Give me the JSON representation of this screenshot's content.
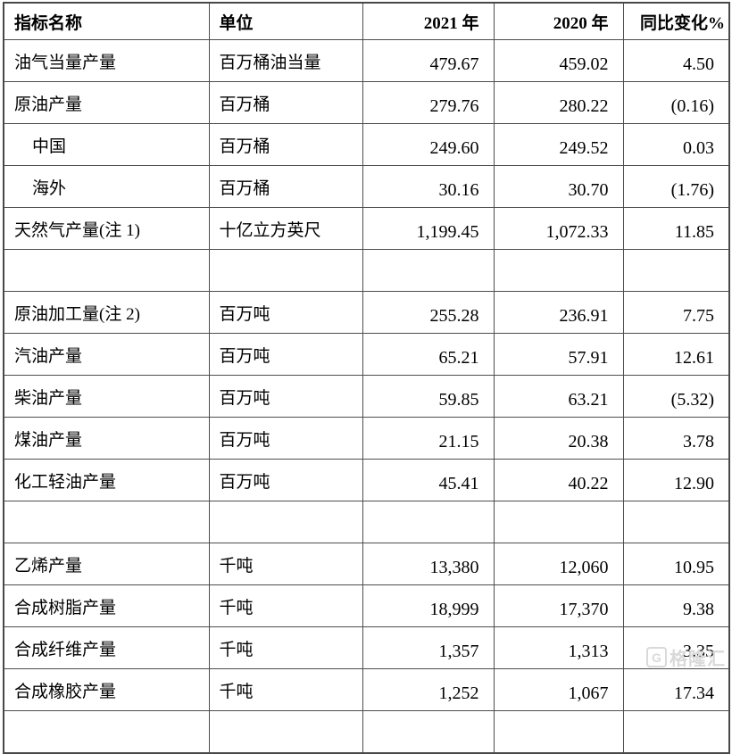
{
  "table": {
    "columns": [
      {
        "key": "name",
        "label": "指标名称",
        "align": "left"
      },
      {
        "key": "unit",
        "label": "单位",
        "align": "left"
      },
      {
        "key": "y2021",
        "label": "2021 年",
        "align": "right"
      },
      {
        "key": "y2020",
        "label": "2020 年",
        "align": "right"
      },
      {
        "key": "change",
        "label": "同比变化%",
        "align": "right"
      }
    ],
    "rows": [
      {
        "name": "油气当量产量",
        "unit": "百万桶油当量",
        "y2021": "479.67",
        "y2020": "459.02",
        "change": "4.50",
        "indent": false,
        "empty": false
      },
      {
        "name": "原油产量",
        "unit": "百万桶",
        "y2021": "279.76",
        "y2020": "280.22",
        "change": "(0.16)",
        "indent": false,
        "empty": false
      },
      {
        "name": "中国",
        "unit": "百万桶",
        "y2021": "249.60",
        "y2020": "249.52",
        "change": "0.03",
        "indent": true,
        "empty": false
      },
      {
        "name": "海外",
        "unit": "百万桶",
        "y2021": "30.16",
        "y2020": "30.70",
        "change": "(1.76)",
        "indent": true,
        "empty": false
      },
      {
        "name": "天然气产量(注 1)",
        "unit": "十亿立方英尺",
        "y2021": "1,199.45",
        "y2020": "1,072.33",
        "change": "11.85",
        "indent": false,
        "empty": false
      },
      {
        "name": "",
        "unit": "",
        "y2021": "",
        "y2020": "",
        "change": "",
        "indent": false,
        "empty": true
      },
      {
        "name": "原油加工量(注 2)",
        "unit": "百万吨",
        "y2021": "255.28",
        "y2020": "236.91",
        "change": "7.75",
        "indent": false,
        "empty": false
      },
      {
        "name": "汽油产量",
        "unit": "百万吨",
        "y2021": "65.21",
        "y2020": "57.91",
        "change": "12.61",
        "indent": false,
        "empty": false
      },
      {
        "name": "柴油产量",
        "unit": "百万吨",
        "y2021": "59.85",
        "y2020": "63.21",
        "change": "(5.32)",
        "indent": false,
        "empty": false
      },
      {
        "name": "煤油产量",
        "unit": "百万吨",
        "y2021": "21.15",
        "y2020": "20.38",
        "change": "3.78",
        "indent": false,
        "empty": false
      },
      {
        "name": "化工轻油产量",
        "unit": "百万吨",
        "y2021": "45.41",
        "y2020": "40.22",
        "change": "12.90",
        "indent": false,
        "empty": false
      },
      {
        "name": "",
        "unit": "",
        "y2021": "",
        "y2020": "",
        "change": "",
        "indent": false,
        "empty": true
      },
      {
        "name": "乙烯产量",
        "unit": "千吨",
        "y2021": "13,380",
        "y2020": "12,060",
        "change": "10.95",
        "indent": false,
        "empty": false
      },
      {
        "name": "合成树脂产量",
        "unit": "千吨",
        "y2021": "18,999",
        "y2020": "17,370",
        "change": "9.38",
        "indent": false,
        "empty": false
      },
      {
        "name": "合成纤维产量",
        "unit": "千吨",
        "y2021": "1,357",
        "y2020": "1,313",
        "change": "3.35",
        "indent": false,
        "empty": false
      },
      {
        "name": "合成橡胶产量",
        "unit": "千吨",
        "y2021": "1,252",
        "y2020": "1,067",
        "change": "17.34",
        "indent": false,
        "empty": false
      },
      {
        "name": "",
        "unit": "",
        "y2021": "",
        "y2020": "",
        "change": "",
        "indent": false,
        "empty": true
      }
    ]
  },
  "watermark": {
    "icon_letter": "G",
    "text": "格隆汇"
  }
}
